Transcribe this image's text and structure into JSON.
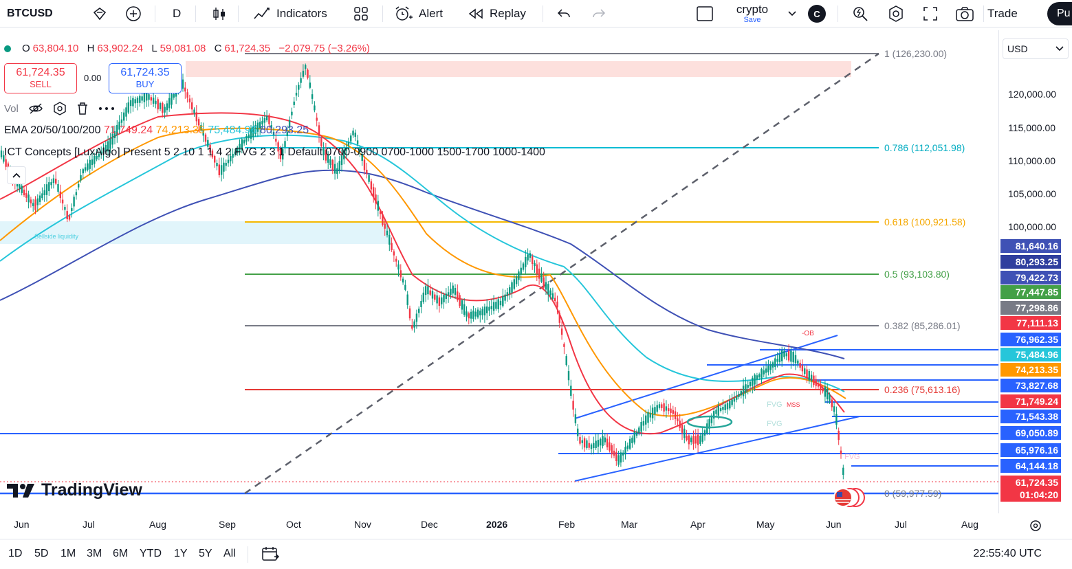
{
  "toolbar": {
    "symbol": "BTCUSD",
    "interval": "D",
    "indicators": "Indicators",
    "alert": "Alert",
    "replay": "Replay",
    "layout_name": "crypto",
    "layout_save": "Save",
    "avatar": "C",
    "trade": "Trade",
    "publish": "Pu"
  },
  "legend": {
    "o_label": "O",
    "o": "63,804.10",
    "h_label": "H",
    "h": "63,902.24",
    "l_label": "L",
    "l": "59,081.08",
    "c_label": "C",
    "c": "61,724.35",
    "change": "−2,079.75 (−3.26%)"
  },
  "order": {
    "sell_price": "61,724.35",
    "sell_label": "SELL",
    "spread": "0.00",
    "buy_price": "61,724.35",
    "buy_label": "BUY"
  },
  "vol_label": "Vol",
  "ema": {
    "label": "EMA 20/50/100/200",
    "v20": "71,749.24",
    "v50": "74,213.35",
    "v100": "75,484.96",
    "v200": "80,293.25",
    "c20": "#f23645",
    "c50": "#ff9800",
    "c100": "#26c6da",
    "c200": "#3f51b5"
  },
  "ict_label": "ICT Concepts [LuxAlgo] Present 5 2 10 1 1 4 2 FVG 2 3 1 Default 0700-0900 0700-1000 1500-1700 1000-1400",
  "sellside_label": "Sellside liquidity",
  "currency": "USD",
  "fib": {
    "f1": "1 (126,230.00)",
    "f786": "0.786 (112,051.98)",
    "f618": "0.618 (100,921.58)",
    "f5": "0.5 (93,103.80)",
    "f382": "0.382 (85,286.01)",
    "f236": "0.236 (75,613.16)",
    "f0": "0 (59,977.59)"
  },
  "annotations": {
    "ob": "-OB",
    "fvg1": "FVG",
    "mss": "MSS",
    "fvg2": "FVG",
    "fvg3": "FVG"
  },
  "price_axis": [
    "120,000.00",
    "115,000.00",
    "110,000.00",
    "105,000.00",
    "100,000.00"
  ],
  "price_tags": [
    {
      "v": "81,640.16",
      "c": "#3f51b5"
    },
    {
      "v": "80,293.25",
      "c": "#2f3e9e"
    },
    {
      "v": "79,422.73",
      "c": "#3f51b5"
    },
    {
      "v": "77,447.85",
      "c": "#43a047"
    },
    {
      "v": "77,298.86",
      "c": "#787b86"
    },
    {
      "v": "77,111.13",
      "c": "#f23645"
    },
    {
      "v": "76,962.35",
      "c": "#2962ff"
    },
    {
      "v": "75,484.96",
      "c": "#26c6da"
    },
    {
      "v": "74,213.35",
      "c": "#ff9800"
    },
    {
      "v": "73,827.68",
      "c": "#2962ff"
    },
    {
      "v": "71,749.24",
      "c": "#f23645"
    },
    {
      "v": "71,543.38",
      "c": "#2962ff"
    },
    {
      "v": "69,050.89",
      "c": "#2962ff"
    },
    {
      "v": "65,976.16",
      "c": "#2962ff"
    },
    {
      "v": "64,144.18",
      "c": "#2962ff"
    },
    {
      "v": "61,724.35",
      "c": "#f23645"
    },
    {
      "v": "01:04:20",
      "c": "#f23645"
    }
  ],
  "x_axis": [
    "Jun",
    "Jul",
    "Aug",
    "Sep",
    "Oct",
    "Nov",
    "Dec",
    "2026",
    "Feb",
    "Mar",
    "Apr",
    "May",
    "Jun",
    "Jul",
    "Aug"
  ],
  "ranges": [
    "1D",
    "5D",
    "1M",
    "3M",
    "6M",
    "YTD",
    "1Y",
    "5Y",
    "All"
  ],
  "clock": "22:55:40 UTC",
  "brand": "TradingView"
}
